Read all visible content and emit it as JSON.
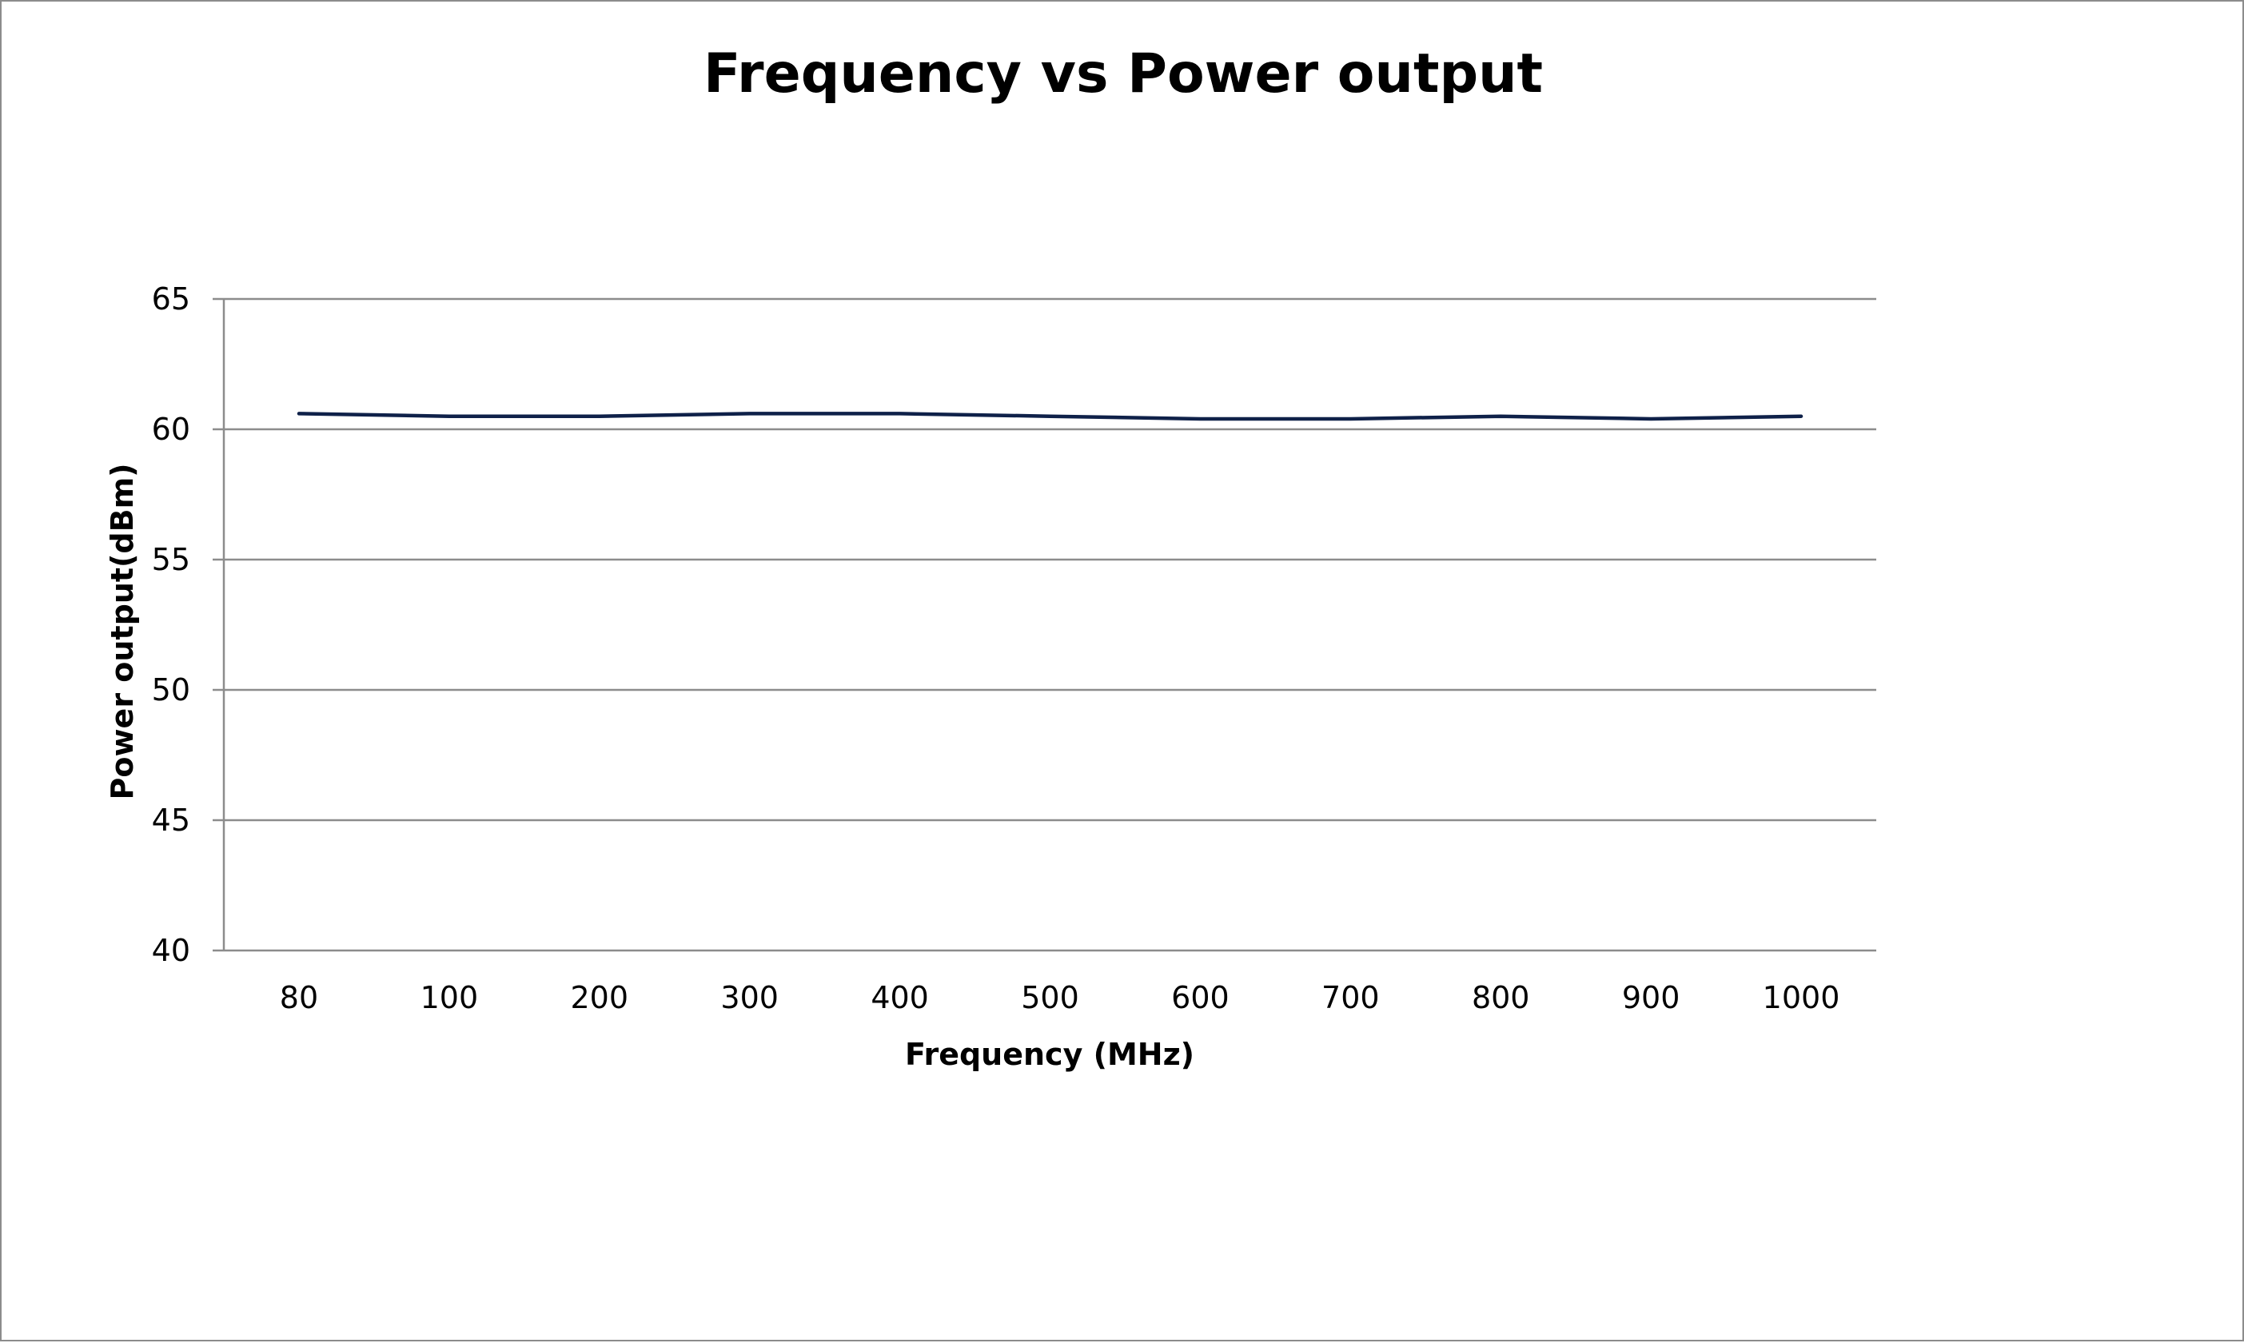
{
  "chart_data": {
    "type": "line",
    "title": "Frequency vs Power output",
    "xlabel": "Frequency (MHz)",
    "ylabel": "Power output(dBm)",
    "categories": [
      "80",
      "100",
      "200",
      "300",
      "400",
      "500",
      "600",
      "700",
      "800",
      "900",
      "1000"
    ],
    "series": [
      {
        "values": [
          60.6,
          60.5,
          60.5,
          60.6,
          60.6,
          60.5,
          60.4,
          60.4,
          60.5,
          60.4,
          60.5
        ],
        "color": "#0f2149"
      }
    ],
    "ylim": [
      40,
      65
    ],
    "yticks": [
      "40",
      "45",
      "50",
      "55",
      "60",
      "65"
    ],
    "grid": "horizontal",
    "legend": "none"
  }
}
